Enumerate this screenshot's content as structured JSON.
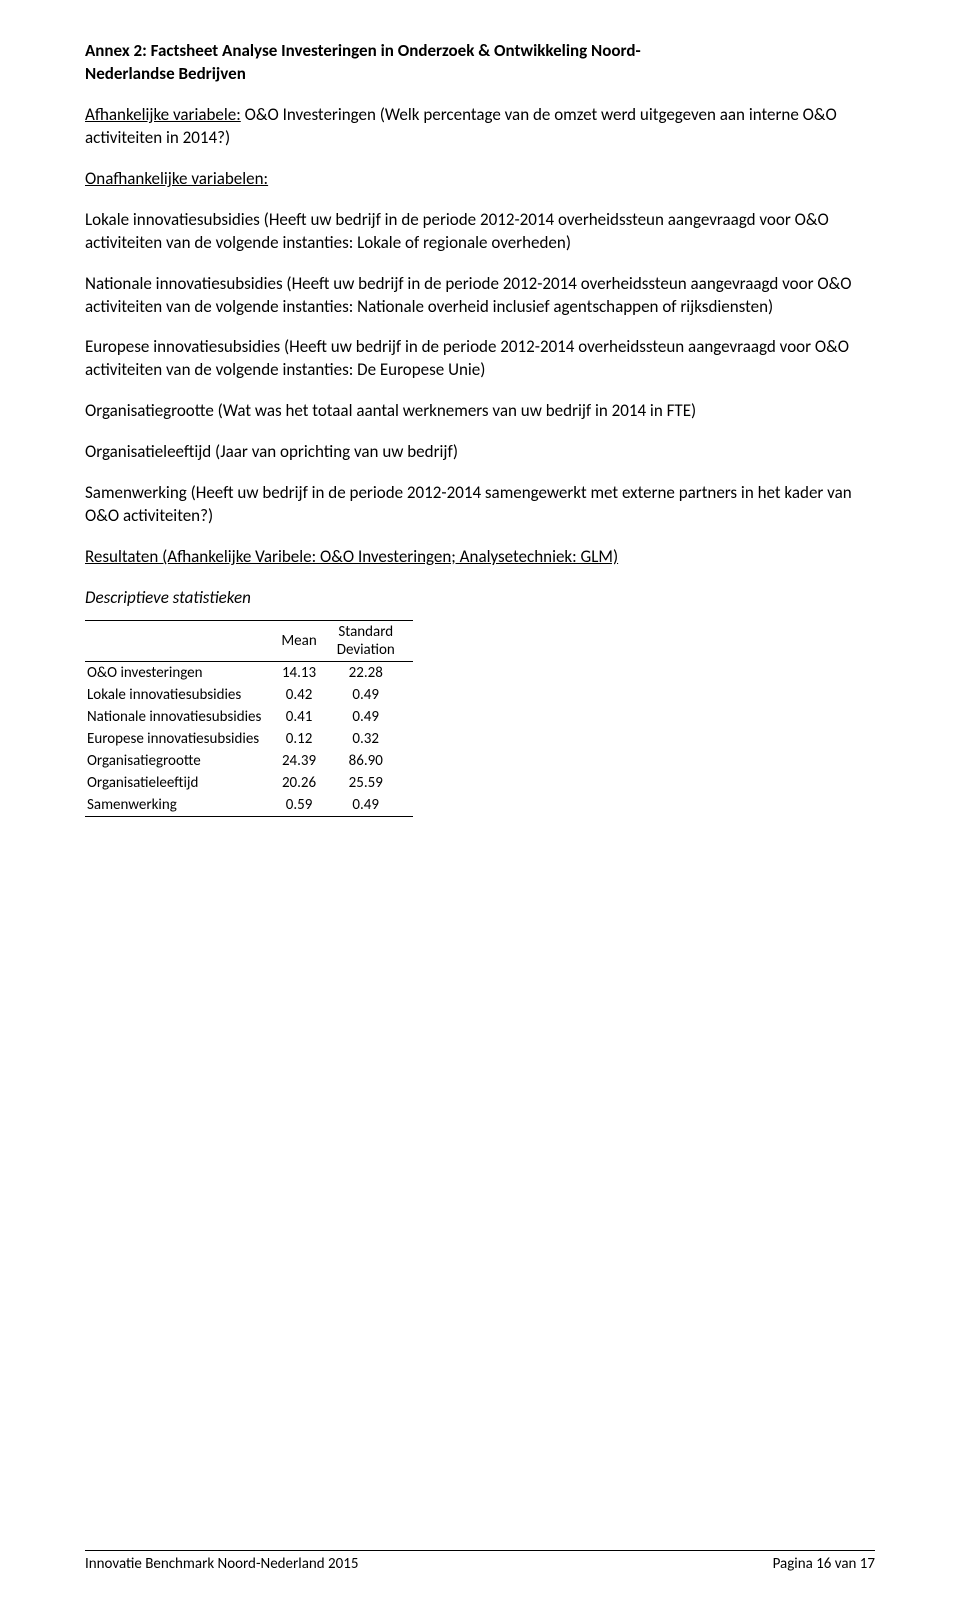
{
  "title_line1": "Annex 2: Factsheet Analyse Investeringen in Onderzoek & Ontwikkeling Noord-",
  "title_line2": "Nederlandse Bedrijven",
  "dependent_label": "Afhankelijke variabele:",
  "dependent_text": " O&O Investeringen (Welk percentage van de omzet werd uitgegeven aan interne O&O activiteiten in 2014?)",
  "independent_heading": "Onafhankelijke variabelen:",
  "para_local": "Lokale innovatiesubsidies (Heeft uw bedrijf in de periode 2012-2014 overheidssteun aangevraagd voor O&O activiteiten van de volgende instanties: Lokale of regionale overheden)",
  "para_national": "Nationale innovatiesubsidies (Heeft uw bedrijf in de periode 2012-2014 overheidssteun aangevraagd voor O&O activiteiten van de volgende instanties: Nationale overheid inclusief agentschappen of rijksdiensten)",
  "para_european": "Europese innovatiesubsidies (Heeft uw bedrijf in de periode 2012-2014 overheidssteun aangevraagd voor O&O activiteiten van de volgende instanties: De Europese Unie)",
  "para_orgsize": "Organisatiegrootte (Wat was het totaal aantal werknemers van uw bedrijf in 2014 in FTE)",
  "para_orgage": "Organisatieleeftijd (Jaar van oprichting van uw bedrijf)",
  "para_collab": "Samenwerking (Heeft uw bedrijf in de periode 2012-2014 samengewerkt met externe partners in het kader van O&O activiteiten?)",
  "results_heading": "Resultaten (Afhankelijke Varibele: O&O Investeringen; Analysetechniek: GLM)",
  "descriptive_heading": "Descriptieve statistieken",
  "table": {
    "col_blank": "",
    "col_mean": "Mean",
    "col_std1": "Standard",
    "col_std2": "Deviation",
    "rows": [
      {
        "label": "O&O investeringen",
        "mean": "14.13",
        "sd": "22.28"
      },
      {
        "label": "Lokale innovatiesubsidies",
        "mean": "0.42",
        "sd": "0.49"
      },
      {
        "label": "Nationale innovatiesubsidies",
        "mean": "0.41",
        "sd": "0.49"
      },
      {
        "label": "Europese innovatiesubsidies",
        "mean": "0.12",
        "sd": "0.32"
      },
      {
        "label": "Organisatiegrootte",
        "mean": "24.39",
        "sd": "86.90"
      },
      {
        "label": "Organisatieleeftijd",
        "mean": "20.26",
        "sd": "25.59"
      },
      {
        "label": "Samenwerking",
        "mean": "0.59",
        "sd": "0.49"
      }
    ]
  },
  "footer_left": "Innovatie Benchmark Noord-Nederland 2015",
  "footer_right": "Pagina 16 van 17"
}
